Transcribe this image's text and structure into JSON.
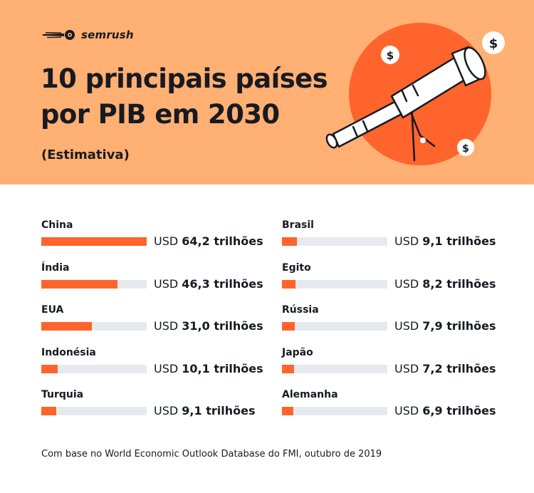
{
  "brand": {
    "name": "semrush"
  },
  "header": {
    "title_line1": "10 principais países",
    "title_line2": "por PIB em 2030",
    "subtitle": "(Estimativa)"
  },
  "illustration": {
    "coin_symbol": "$"
  },
  "chart_data": {
    "type": "bar",
    "orientation": "horizontal",
    "title": "10 principais países por PIB em 2030",
    "subtitle": "(Estimativa)",
    "unit_prefix": "USD",
    "unit_suffix": "trilhões",
    "xlim": [
      0,
      64.2
    ],
    "categories": [
      "China",
      "Índia",
      "EUA",
      "Indonésia",
      "Turquia",
      "Brasil",
      "Egito",
      "Rússia",
      "Japão",
      "Alemanha"
    ],
    "values": [
      64.2,
      46.3,
      31.0,
      10.1,
      9.1,
      9.1,
      8.2,
      7.9,
      7.2,
      6.9
    ],
    "value_labels": [
      "64,2",
      "46,3",
      "31,0",
      "10,1",
      "9,1",
      "9,1",
      "8,2",
      "7,9",
      "7,2",
      "6,9"
    ],
    "columns": 2,
    "colors": {
      "bar": "#ff642d",
      "track": "#e6eaef"
    }
  },
  "footer": {
    "source": "Com base no World Economic Outlook Database do FMI, outubro de 2019"
  }
}
